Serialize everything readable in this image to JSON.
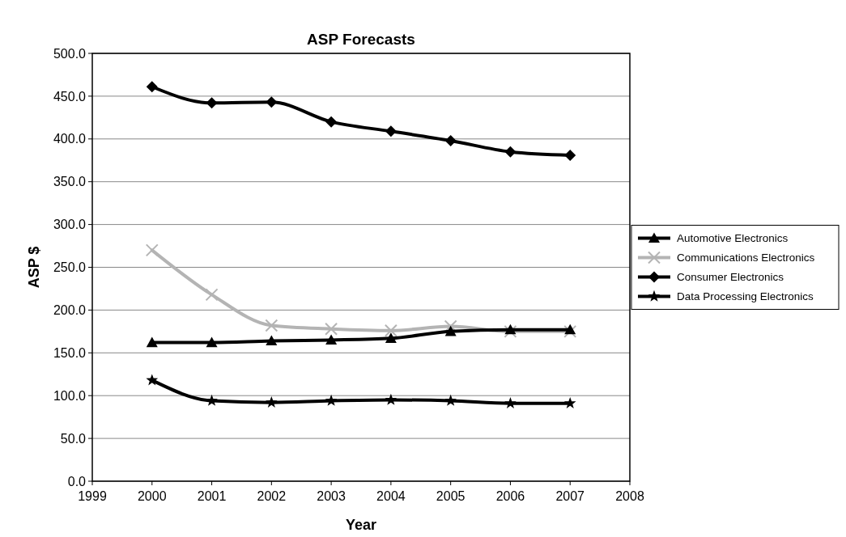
{
  "chart_data": {
    "type": "line",
    "title": "ASP Forecasts",
    "xlabel": "Year",
    "ylabel": "ASP $",
    "x": [
      2000,
      2001,
      2002,
      2003,
      2004,
      2005,
      2006,
      2007
    ],
    "series": [
      {
        "name": "Automotive Electronics",
        "color": "#000000",
        "marker": "triangle",
        "values": [
          162,
          162,
          164,
          165,
          167,
          175,
          177,
          177
        ]
      },
      {
        "name": "Communications Electronics",
        "color": "#b4b4b4",
        "marker": "cross",
        "values": [
          270,
          218,
          182,
          178,
          176,
          181,
          175,
          175
        ]
      },
      {
        "name": "Consumer Electronics",
        "color": "#000000",
        "marker": "diamond",
        "values": [
          461,
          442,
          443,
          420,
          409,
          398,
          385,
          381
        ]
      },
      {
        "name": "Data Processing Electronics",
        "color": "#000000",
        "marker": "star",
        "values": [
          118,
          94,
          92,
          94,
          95,
          94,
          91,
          91
        ]
      }
    ],
    "xlim": [
      1999,
      2008
    ],
    "xticks": [
      1999,
      2000,
      2001,
      2002,
      2003,
      2004,
      2005,
      2006,
      2007,
      2008
    ],
    "ylim": [
      0,
      500
    ],
    "yticks": [
      {
        "value": 0,
        "label": "0.0"
      },
      {
        "value": 50,
        "label": "50.0"
      },
      {
        "value": 100,
        "label": "100.0"
      },
      {
        "value": 150,
        "label": "150.0"
      },
      {
        "value": 200,
        "label": "200.0"
      },
      {
        "value": 250,
        "label": "250.0"
      },
      {
        "value": 300,
        "label": "300.0"
      },
      {
        "value": 350,
        "label": "350.0"
      },
      {
        "value": 400,
        "label": "400.0"
      },
      {
        "value": 450,
        "label": "450.0"
      },
      {
        "value": 500,
        "label": "500.0"
      }
    ],
    "grid": "y",
    "legend": "right",
    "line_style": "solid"
  }
}
